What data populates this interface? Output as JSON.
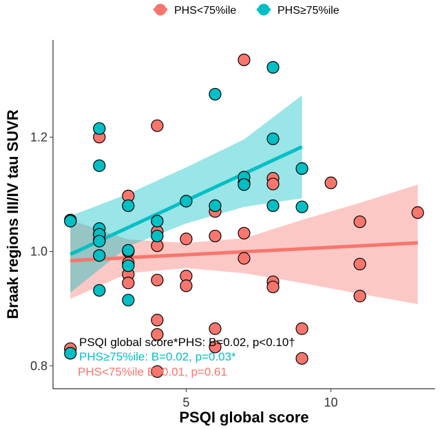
{
  "chart_data": {
    "type": "scatter",
    "title": "",
    "xlabel": "PSQI global score",
    "ylabel": "Braak regions III/IV tau SUVR",
    "xlim": [
      0.4,
      13.6
    ],
    "ylim": [
      0.76,
      1.37
    ],
    "x_ticks": [
      5,
      10
    ],
    "y_ticks": [
      0.8,
      1.0,
      1.2
    ],
    "x_tick_labels": [
      "5",
      "10"
    ],
    "y_tick_labels": [
      "0.8",
      "1.0",
      "1.2"
    ],
    "grid": false,
    "legend_position": "top",
    "legend": [
      {
        "label": "PHS<75%ile",
        "color": "#F8766D"
      },
      {
        "label": "PHS≥75%ile",
        "color": "#00BFC4"
      }
    ],
    "series": [
      {
        "name": "PHS<75%ile",
        "color": "#F8766D",
        "points": [
          [
            1,
            0.83
          ],
          [
            1,
            1.055
          ],
          [
            2,
            1.2
          ],
          [
            2,
            1.03
          ],
          [
            2,
            1.02
          ],
          [
            3,
            1.097
          ],
          [
            3,
            1.0
          ],
          [
            3,
            0.98
          ],
          [
            3,
            0.96
          ],
          [
            3,
            0.945
          ],
          [
            4,
            1.22
          ],
          [
            4,
            1.035
          ],
          [
            4,
            1.01
          ],
          [
            4,
            0.95
          ],
          [
            4,
            0.88
          ],
          [
            4,
            0.855
          ],
          [
            4,
            0.79
          ],
          [
            5,
            1.022
          ],
          [
            5,
            0.957
          ],
          [
            5,
            0.94
          ],
          [
            6,
            1.07
          ],
          [
            6,
            1.027
          ],
          [
            6,
            0.865
          ],
          [
            6,
            0.833
          ],
          [
            7,
            1.335
          ],
          [
            7,
            1.12
          ],
          [
            7,
            1.032
          ],
          [
            7,
            0.988
          ],
          [
            8,
            1.128
          ],
          [
            8,
            1.118
          ],
          [
            8,
            0.947
          ],
          [
            8,
            0.938
          ],
          [
            9,
            0.865
          ],
          [
            9,
            0.813
          ],
          [
            10,
            1.12
          ],
          [
            11,
            1.052
          ],
          [
            11,
            0.978
          ],
          [
            11,
            0.922
          ],
          [
            13,
            1.068
          ]
        ],
        "fit": {
          "x": [
            1,
            13
          ],
          "y": [
            0.984,
            1.015
          ]
        },
        "ci": {
          "x": [
            1,
            3,
            5,
            7,
            9,
            11,
            13
          ],
          "lower": [
            0.917,
            0.962,
            0.971,
            0.962,
            0.945,
            0.926,
            0.908
          ],
          "upper": [
            1.055,
            1.021,
            1.015,
            1.023,
            1.055,
            1.085,
            1.117
          ]
        }
      },
      {
        "name": "PHS≥75%ile",
        "color": "#00BFC4",
        "points": [
          [
            1,
            1.053
          ],
          [
            1,
            0.822
          ],
          [
            2,
            1.215
          ],
          [
            2,
            1.15
          ],
          [
            2,
            1.04
          ],
          [
            2,
            1.03
          ],
          [
            2,
            1.018
          ],
          [
            2,
            0.993
          ],
          [
            2,
            0.932
          ],
          [
            3,
            1.08
          ],
          [
            3,
            1.002
          ],
          [
            3,
            0.975
          ],
          [
            3,
            0.915
          ],
          [
            4,
            1.053
          ],
          [
            4,
            1.027
          ],
          [
            5,
            1.088
          ],
          [
            6,
            1.275
          ],
          [
            6,
            1.08
          ],
          [
            7,
            1.13
          ],
          [
            7,
            1.117
          ],
          [
            8,
            1.322
          ],
          [
            8,
            1.197
          ],
          [
            8,
            1.08
          ],
          [
            9,
            1.145
          ],
          [
            9,
            1.078
          ]
        ],
        "fit": {
          "x": [
            1,
            9
          ],
          "y": [
            0.995,
            1.183
          ]
        },
        "ci": {
          "x": [
            1,
            3,
            5,
            7,
            9
          ],
          "lower": [
            0.928,
            1.009,
            1.049,
            1.078,
            1.093
          ],
          "upper": [
            1.062,
            1.101,
            1.147,
            1.196,
            1.273
          ]
        }
      }
    ],
    "annotations": [
      {
        "text": "PSQI global score*PHS: B=0.02, p<0.10†",
        "color": "#000000"
      },
      {
        "text": "PHS≥75%ile: B=0.02, p=0.03*",
        "color": "#00BFC4"
      },
      {
        "text": "PHS<75%ile B<0.01, p=0.61",
        "color": "#F8766D"
      }
    ]
  }
}
